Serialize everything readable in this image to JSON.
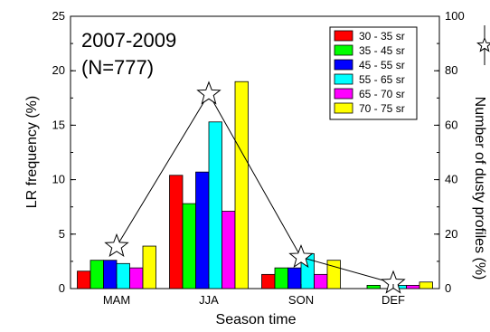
{
  "chart_data": {
    "type": "bar",
    "annotation_lines": [
      "2007-2009",
      "(N=777)"
    ],
    "categories": [
      "MAM",
      "JJA",
      "SON",
      "DEF"
    ],
    "series": [
      {
        "name": "30 - 35 sr",
        "color": "#ff0000",
        "values": [
          1.6,
          10.4,
          1.3,
          0.0
        ]
      },
      {
        "name": "35 - 45 sr",
        "color": "#00ff00",
        "values": [
          2.6,
          7.8,
          1.9,
          0.3
        ]
      },
      {
        "name": "45 - 55 sr",
        "color": "#0000ff",
        "values": [
          2.6,
          10.7,
          1.9,
          0.0
        ]
      },
      {
        "name": "55 - 65 sr",
        "color": "#00ffff",
        "values": [
          2.3,
          15.3,
          3.2,
          0.3
        ]
      },
      {
        "name": "65 - 70 sr",
        "color": "#ff00ff",
        "values": [
          1.9,
          7.1,
          1.3,
          0.3
        ]
      },
      {
        "name": "70 - 75 sr",
        "color": "#ffff00",
        "values": [
          3.9,
          19.0,
          2.6,
          0.6
        ]
      }
    ],
    "line_series": {
      "name": "Number of dusty profiles (%)",
      "marker": "star",
      "values": [
        15.5,
        71.5,
        11.5,
        2.0
      ]
    },
    "xlabel": "Season time",
    "ylabel": "LR frequency (%)",
    "y2label": "Number of dusty profiles (%)",
    "ylim": [
      0,
      25
    ],
    "y2lim": [
      0,
      100
    ],
    "yticks": [
      "0",
      "5",
      "10",
      "15",
      "20",
      "25"
    ],
    "y2ticks": [
      "0",
      "20",
      "40",
      "60",
      "80",
      "100"
    ],
    "grid": false,
    "legend_position": "top-right"
  }
}
